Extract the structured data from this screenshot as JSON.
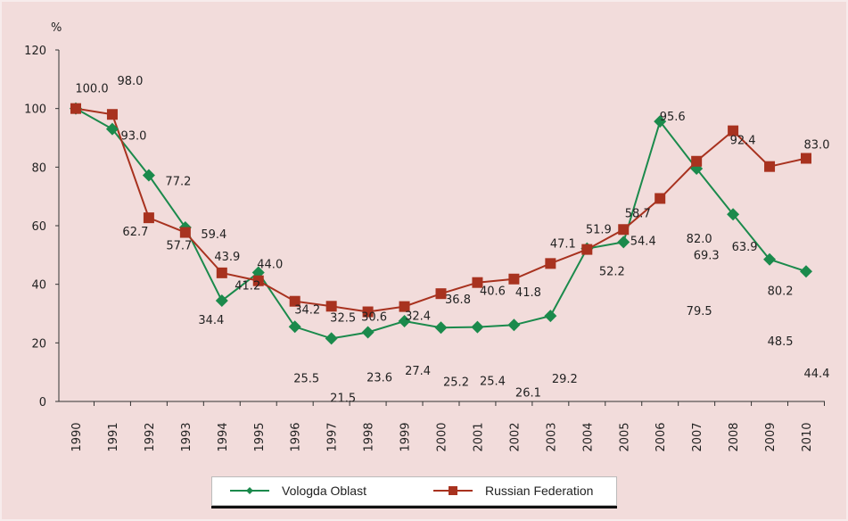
{
  "chart_data": {
    "type": "line",
    "ylabel": "%",
    "ylim": [
      0,
      120
    ],
    "yticks": [
      "0",
      "20",
      "40",
      "60",
      "80",
      "100",
      "120"
    ],
    "categories": [
      "1990",
      "1991",
      "1992",
      "1993",
      "1994",
      "1995",
      "1996",
      "1997",
      "1998",
      "1999",
      "2000",
      "2001",
      "2002",
      "2003",
      "2004",
      "2005",
      "2006",
      "2007",
      "2008",
      "2009",
      "2010"
    ],
    "grid": false,
    "legend": "bottom",
    "series": [
      {
        "name": "Vologda Oblast",
        "color": "#1b8a4c",
        "marker": "diamond",
        "values": [
          100,
          93.0,
          77.2,
          59.4,
          34.4,
          44.0,
          25.5,
          21.5,
          23.6,
          27.4,
          25.2,
          25.4,
          26.1,
          29.2,
          52.2,
          54.4,
          95.6,
          79.5,
          63.9,
          48.5,
          44.4
        ],
        "labels": [
          null,
          "93.0",
          "77.2",
          "59.4",
          "34.4",
          "44.0",
          "25.5",
          "21.5",
          "23.6",
          "27.4",
          "25.2",
          "25.4",
          "26.1",
          "29.2",
          "52.2",
          "54.4",
          "95.6",
          "79.5",
          "63.9",
          "48.5",
          "44.4"
        ]
      },
      {
        "name": "Russian Federation",
        "color": "#a8321f",
        "marker": "square",
        "values": [
          100.0,
          98.0,
          62.7,
          57.7,
          43.9,
          41.2,
          34.2,
          32.5,
          30.6,
          32.4,
          36.8,
          40.6,
          41.8,
          47.1,
          51.9,
          58.7,
          69.3,
          82.0,
          92.4,
          80.2,
          83.0
        ],
        "labels": [
          "100.0",
          "98.0",
          "62.7",
          "57.7",
          "43.9",
          "41.2",
          "34.2",
          "32.5",
          "30.6",
          "32.4",
          "36.8",
          "40.6",
          "41.8",
          "47.1",
          "51.9",
          "58.7",
          "69.3",
          "82.0",
          "92.4",
          "80.2",
          "83.0"
        ]
      }
    ]
  }
}
